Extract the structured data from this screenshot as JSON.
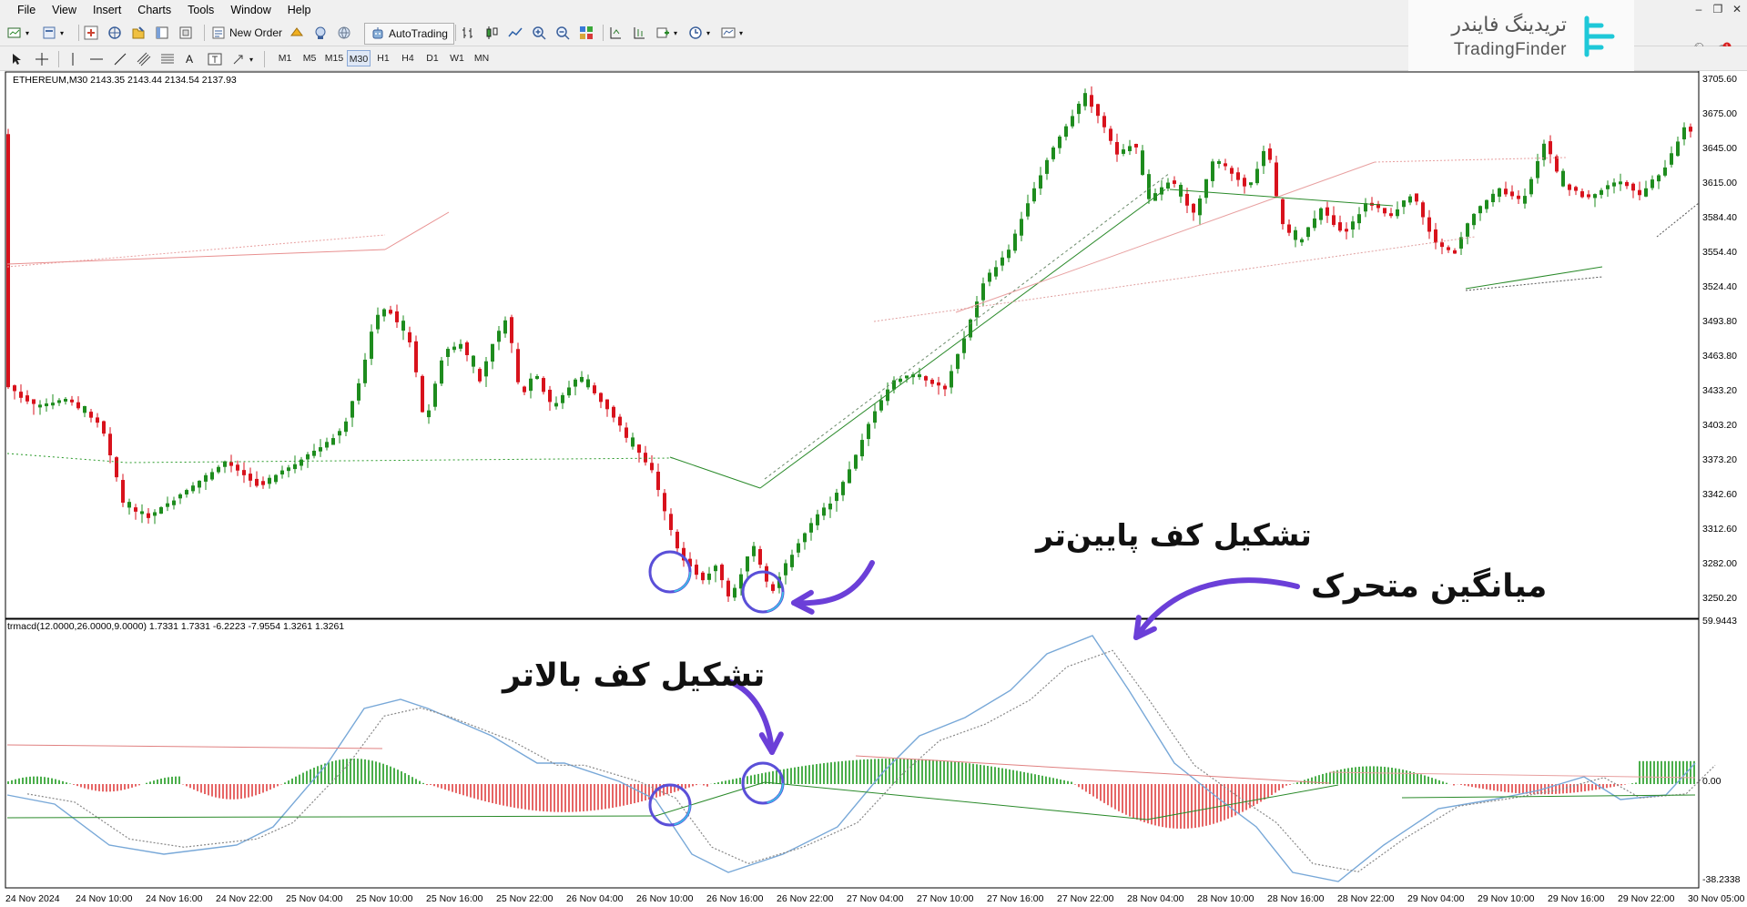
{
  "menu": {
    "items": [
      "File",
      "View",
      "Insert",
      "Charts",
      "Tools",
      "Window",
      "Help"
    ]
  },
  "toolbar": {
    "new_order_label": "New Order",
    "autotrading_label": "AutoTrading",
    "timeframes": [
      "M1",
      "M5",
      "M15",
      "M30",
      "H1",
      "H4",
      "D1",
      "W1",
      "MN"
    ],
    "active_timeframe": "M30"
  },
  "logo": {
    "persian": "تریدینگ فایندر",
    "english": "TradingFinder"
  },
  "chart": {
    "symbol_info": "ETHEREUM,M30  2143.35 2143.44 2134.54 2137.93",
    "indicator_info": "trmacd(12.0000,26.0000,9.0000) 1.7331 1.7331 -6.2223 -7.9554 1.3261 1.3261",
    "price_labels": [
      "3705.60",
      "3675.00",
      "3645.00",
      "3615.00",
      "3584.40",
      "3554.40",
      "3524.40",
      "3493.80",
      "3463.80",
      "3433.20",
      "3403.20",
      "3373.20",
      "3342.60",
      "3312.60",
      "3282.00",
      "3250.20"
    ],
    "indicator_labels": [
      "59.9443",
      "0.00",
      "-38.2338"
    ],
    "time_labels": [
      "24 Nov 2024",
      "24 Nov 10:00",
      "24 Nov 16:00",
      "24 Nov 22:00",
      "25 Nov 04:00",
      "25 Nov 10:00",
      "25 Nov 16:00",
      "25 Nov 22:00",
      "26 Nov 04:00",
      "26 Nov 10:00",
      "26 Nov 16:00",
      "26 Nov 22:00",
      "27 Nov 04:00",
      "27 Nov 10:00",
      "27 Nov 16:00",
      "27 Nov 22:00",
      "28 Nov 04:00",
      "28 Nov 10:00",
      "28 Nov 16:00",
      "28 Nov 22:00",
      "29 Nov 04:00",
      "29 Nov 10:00",
      "29 Nov 16:00",
      "29 Nov 22:00",
      "30 Nov 05:00"
    ]
  },
  "annotations": {
    "lower_low": "تشکیل کف پایین‌تر",
    "moving_average": "میانگین متحرک",
    "higher_low": "تشکیل کف بالاتر"
  },
  "colors": {
    "bull": "#1e8c1e",
    "bear": "#d8121c",
    "annotation_arrow": "#6b3fd8",
    "macd_line": "#78a8d8",
    "signal_line": "#888888"
  }
}
